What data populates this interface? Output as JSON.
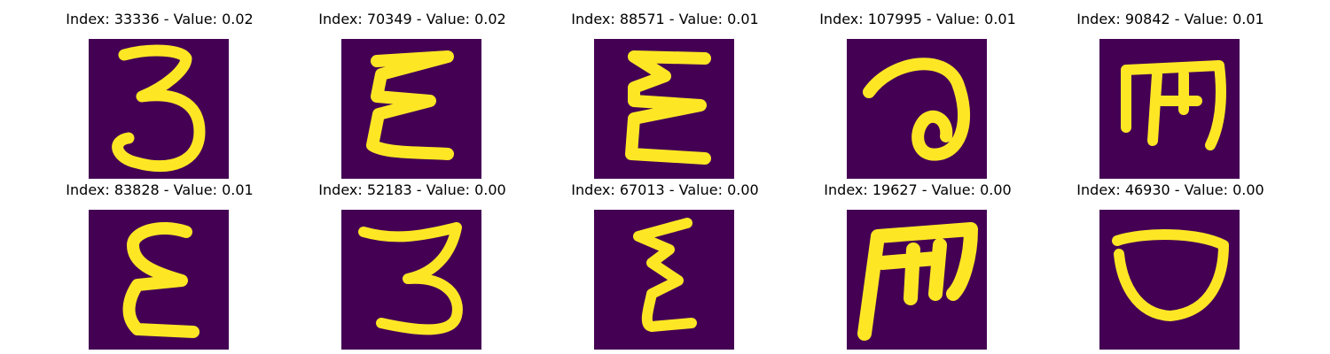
{
  "figure": {
    "background": "#ffffff",
    "colormap": "viridis",
    "image_background_color": "#440154",
    "stroke_color": "#fde725",
    "panels": [
      {
        "title": "Index: 33336 - Value: 0.02",
        "glyph": "3"
      },
      {
        "title": "Index: 70349 - Value: 0.02",
        "glyph": "Ɛ"
      },
      {
        "title": "Index: 88571 - Value: 0.01",
        "glyph": "Ɛ"
      },
      {
        "title": "Index: 107995 - Value: 0.01",
        "glyph": "ə"
      },
      {
        "title": "Index: 90842 - Value: 0.01",
        "glyph": "m"
      },
      {
        "title": "Index: 83828 - Value: 0.01",
        "glyph": "Ɛ"
      },
      {
        "title": "Index: 52183 - Value: 0.00",
        "glyph": "3"
      },
      {
        "title": "Index: 67013 - Value: 0.00",
        "glyph": "Ɛ"
      },
      {
        "title": "Index: 19627 - Value: 0.00",
        "glyph": "m"
      },
      {
        "title": "Index: 46930 - Value: 0.00",
        "glyph": "D"
      }
    ]
  }
}
